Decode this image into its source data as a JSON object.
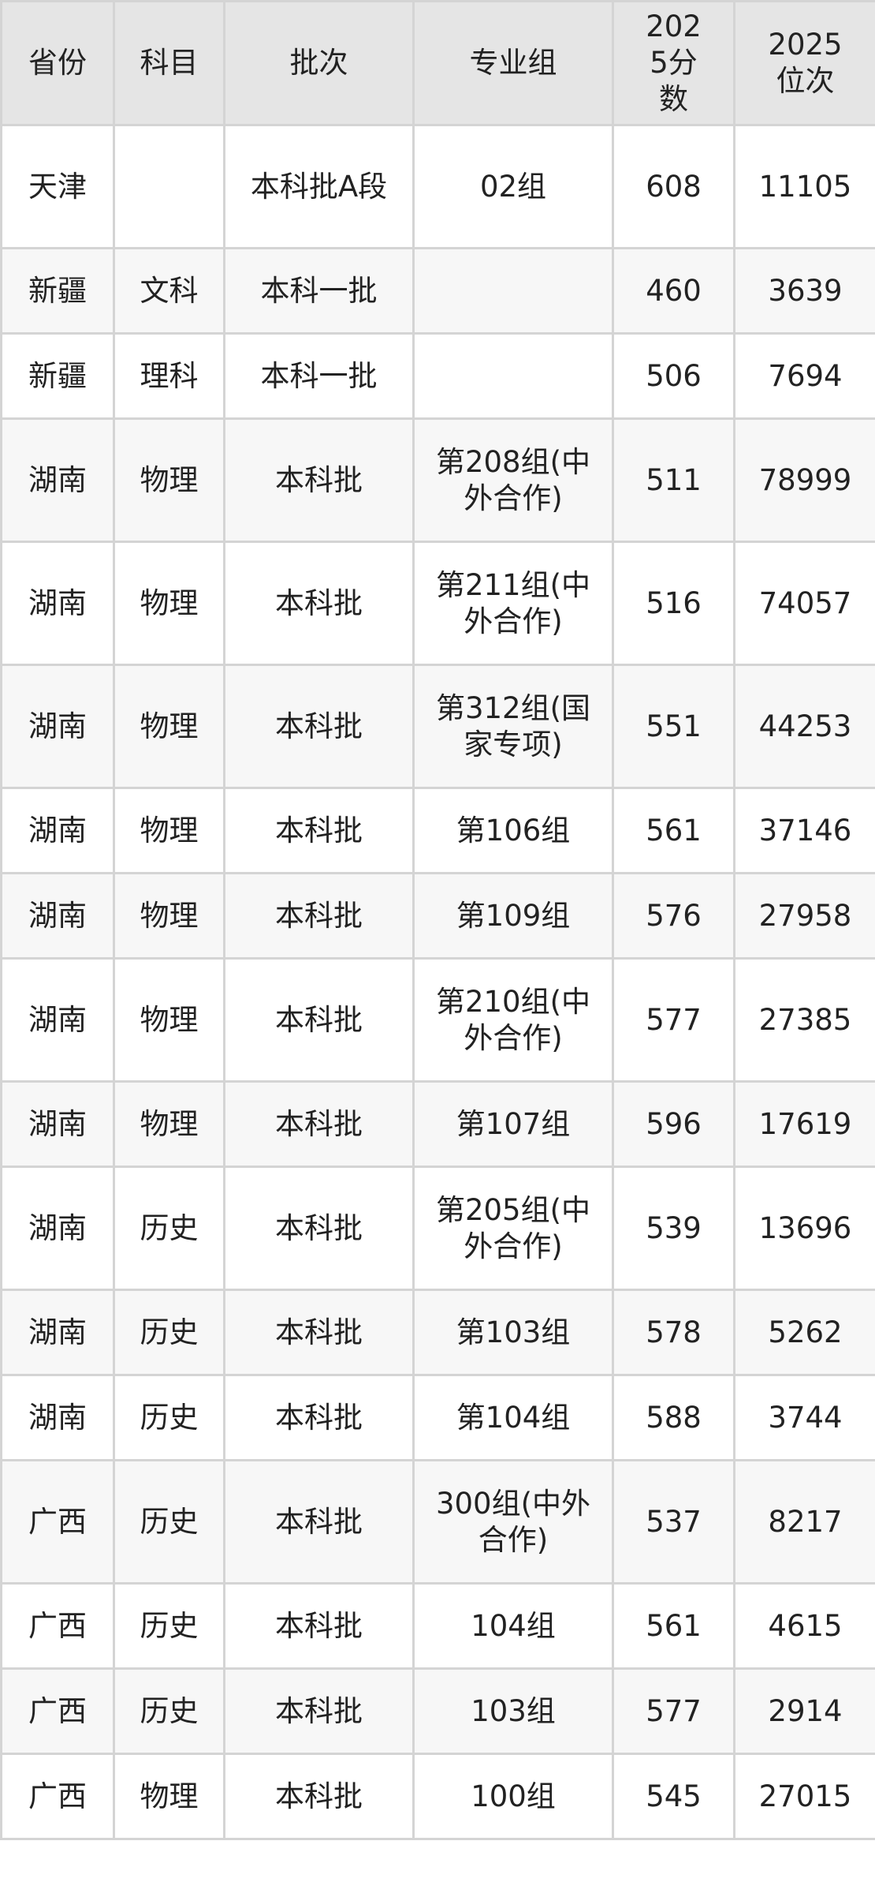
{
  "headers": [
    "省份",
    "科目",
    "批次",
    "专业组",
    "2025分数",
    "2025位次"
  ],
  "rows": [
    {
      "province": "天津",
      "subject": "",
      "batch": "本科批A段",
      "group": "02组",
      "score": "608",
      "rank": "11105"
    },
    {
      "province": "新疆",
      "subject": "文科",
      "batch": "本科一批",
      "group": "",
      "score": "460",
      "rank": "3639"
    },
    {
      "province": "新疆",
      "subject": "理科",
      "batch": "本科一批",
      "group": "",
      "score": "506",
      "rank": "7694"
    },
    {
      "province": "湖南",
      "subject": "物理",
      "batch": "本科批",
      "group": "第208组(中外合作)",
      "score": "511",
      "rank": "78999"
    },
    {
      "province": "湖南",
      "subject": "物理",
      "batch": "本科批",
      "group": "第211组(中外合作)",
      "score": "516",
      "rank": "74057"
    },
    {
      "province": "湖南",
      "subject": "物理",
      "batch": "本科批",
      "group": "第312组(国家专项)",
      "score": "551",
      "rank": "44253"
    },
    {
      "province": "湖南",
      "subject": "物理",
      "batch": "本科批",
      "group": "第106组",
      "score": "561",
      "rank": "37146"
    },
    {
      "province": "湖南",
      "subject": "物理",
      "batch": "本科批",
      "group": "第109组",
      "score": "576",
      "rank": "27958"
    },
    {
      "province": "湖南",
      "subject": "物理",
      "batch": "本科批",
      "group": "第210组(中外合作)",
      "score": "577",
      "rank": "27385"
    },
    {
      "province": "湖南",
      "subject": "物理",
      "batch": "本科批",
      "group": "第107组",
      "score": "596",
      "rank": "17619"
    },
    {
      "province": "湖南",
      "subject": "历史",
      "batch": "本科批",
      "group": "第205组(中外合作)",
      "score": "539",
      "rank": "13696"
    },
    {
      "province": "湖南",
      "subject": "历史",
      "batch": "本科批",
      "group": "第103组",
      "score": "578",
      "rank": "5262"
    },
    {
      "province": "湖南",
      "subject": "历史",
      "batch": "本科批",
      "group": "第104组",
      "score": "588",
      "rank": "3744"
    },
    {
      "province": "广西",
      "subject": "历史",
      "batch": "本科批",
      "group": "300组(中外合作)",
      "score": "537",
      "rank": "8217"
    },
    {
      "province": "广西",
      "subject": "历史",
      "batch": "本科批",
      "group": "104组",
      "score": "561",
      "rank": "4615"
    },
    {
      "province": "广西",
      "subject": "历史",
      "batch": "本科批",
      "group": "103组",
      "score": "577",
      "rank": "2914"
    },
    {
      "province": "广西",
      "subject": "物理",
      "batch": "本科批",
      "group": "100组",
      "score": "545",
      "rank": "27015"
    }
  ]
}
